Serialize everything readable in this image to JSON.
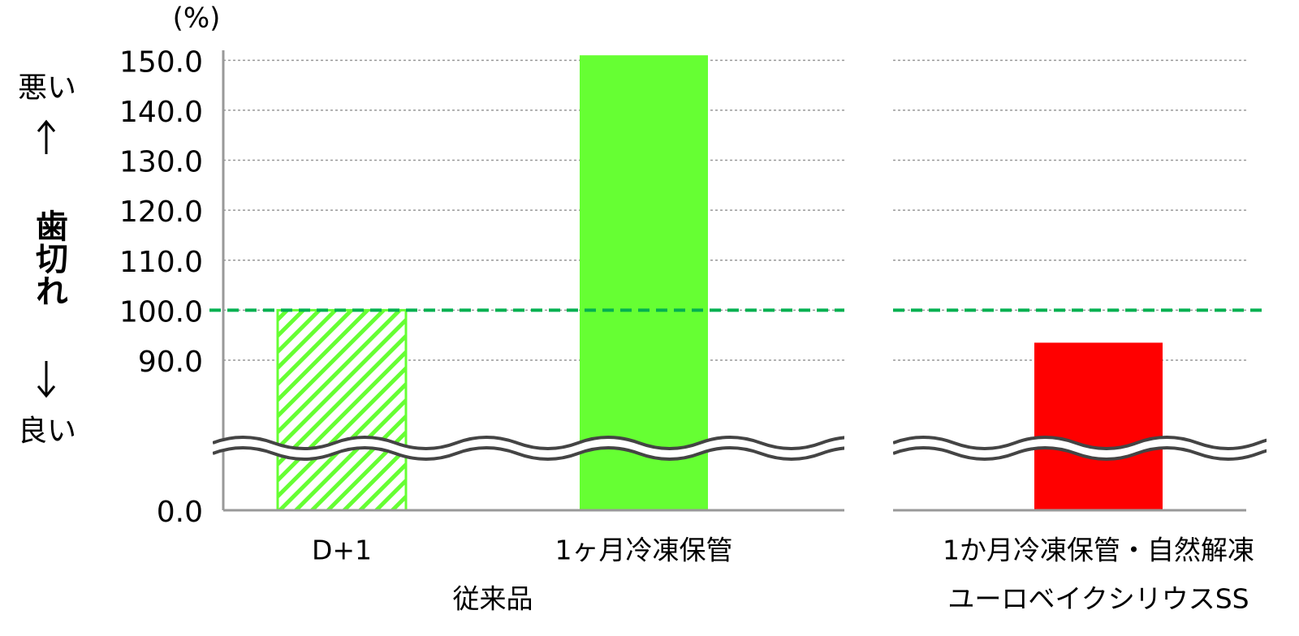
{
  "chart_data": {
    "type": "bar",
    "unit_label": "(%)",
    "ylabel": "歯切れ",
    "ylabel_top": "悪い",
    "ylabel_bottom": "良い",
    "groups": [
      {
        "label": "従来品",
        "categories": [
          "D+1",
          "1ヶ月冷凍保管"
        ],
        "values": [
          100,
          151
        ],
        "colors": [
          "#66ff33",
          "#66ff33"
        ],
        "patterns": [
          "hatch",
          "solid"
        ]
      },
      {
        "label": "ユーロベイクシリウスSS",
        "categories": [
          "1か月冷凍保管・自然解凍"
        ],
        "values": [
          93.5
        ],
        "colors": [
          "#ff0000"
        ],
        "patterns": [
          "solid"
        ]
      }
    ],
    "ylim": [
      0,
      152
    ],
    "yticks": [
      {
        "value": 0,
        "label": "0.0"
      },
      {
        "value": 90,
        "label": "90.0"
      },
      {
        "value": 100,
        "label": "100.0"
      },
      {
        "value": 110,
        "label": "110.0"
      },
      {
        "value": 120,
        "label": "120.0"
      },
      {
        "value": 130,
        "label": "130.0"
      },
      {
        "value": 140,
        "label": "140.0"
      },
      {
        "value": 150,
        "label": "150.0"
      }
    ],
    "grid": true,
    "axis_break": true,
    "reference_line": {
      "value": 100,
      "color": "#00b050"
    }
  }
}
